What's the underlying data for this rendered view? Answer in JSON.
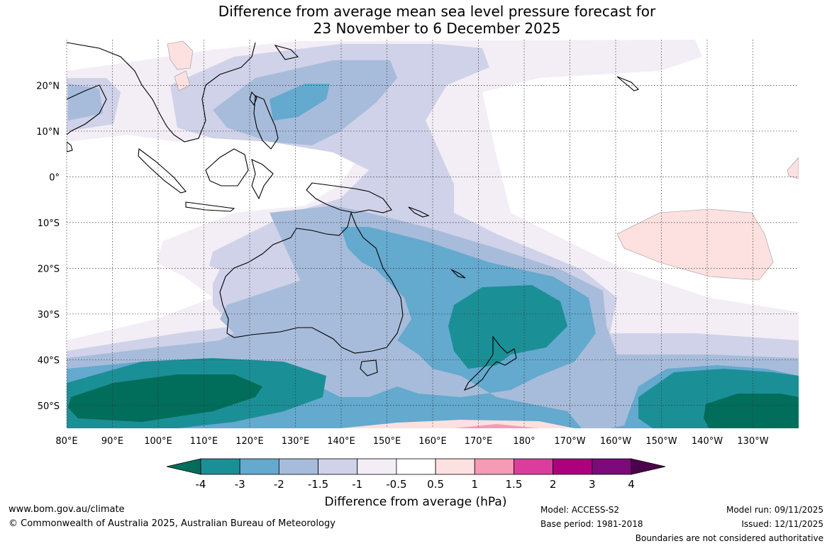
{
  "title": {
    "line1": "Difference from average mean sea level pressure forecast for",
    "line2": "23 November to 6 December 2025"
  },
  "map": {
    "lon_labels": [
      "80°E",
      "90°E",
      "100°E",
      "110°E",
      "120°E",
      "130°E",
      "140°E",
      "150°E",
      "160°E",
      "170°E",
      "180°",
      "170°W",
      "160°W",
      "150°W",
      "140°W",
      "130°W"
    ],
    "lat_labels": [
      "20°N",
      "10°N",
      "0°",
      "10°S",
      "20°S",
      "30°S",
      "40°S",
      "50°S"
    ],
    "lon_range": [
      80,
      240
    ],
    "lat_range": [
      -55,
      30
    ]
  },
  "colorbar": {
    "label": "Difference from average (hPa)",
    "ticks": [
      "-4",
      "-3",
      "-2",
      "-1.5",
      "-1",
      "-0.5",
      "0.5",
      "1",
      "1.5",
      "2",
      "3",
      "4"
    ],
    "colors": [
      "#006e5a",
      "#1b8f96",
      "#64a9ce",
      "#a7bcda",
      "#cfd2e8",
      "#f3edf6",
      "#ffffff",
      "#fde0e0",
      "#f59bb5",
      "#dc3d9c",
      "#ad007d",
      "#7c0a7a",
      "#4d004b"
    ]
  },
  "footer": {
    "website": "www.bom.gov.au/climate",
    "copyright": "© Commonwealth of Australia 2025, Australian Bureau of Meteorology",
    "model": "Model: ACCESS-S2",
    "base_period": "Base period: 1981-2018",
    "model_run": "Model run: 09/11/2025",
    "issued": "Issued: 12/11/2025",
    "disclaimer": "Boundaries are not considered authoritative"
  }
}
